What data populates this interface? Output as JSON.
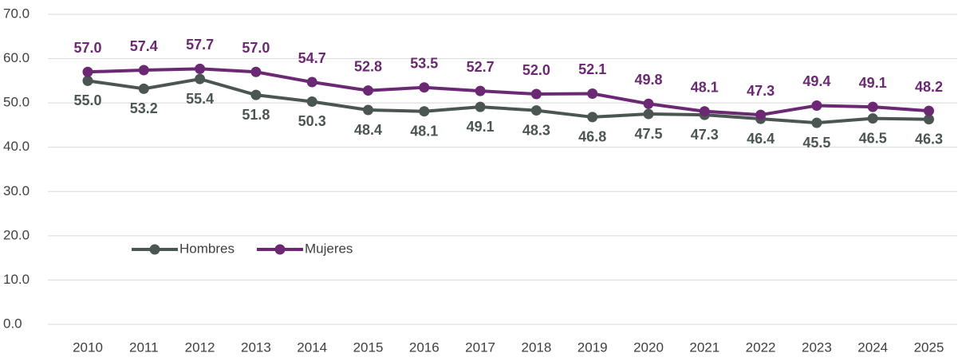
{
  "chart_data": {
    "type": "line",
    "categories": [
      "2010",
      "2011",
      "2012",
      "2013",
      "2014",
      "2015",
      "2016",
      "2017",
      "2018",
      "2019",
      "2020",
      "2021",
      "2022",
      "2023",
      "2024",
      "2025"
    ],
    "series": [
      {
        "name": "Hombres",
        "color": "#4b5551",
        "values": [
          55.0,
          53.2,
          55.4,
          51.8,
          50.3,
          48.4,
          48.1,
          49.1,
          48.3,
          46.8,
          47.5,
          47.3,
          46.4,
          45.5,
          46.5,
          46.3
        ],
        "value_labels": [
          "55.0",
          "53.2",
          "55.4",
          "51.8",
          "50.3",
          "48.4",
          "48.1",
          "49.1",
          "48.3",
          "46.8",
          "47.5",
          "47.3",
          "46.4",
          "45.5",
          "46.5",
          "46.3"
        ]
      },
      {
        "name": "Mujeres",
        "color": "#6b2873",
        "values": [
          57.0,
          57.4,
          57.7,
          57.0,
          54.7,
          52.8,
          53.5,
          52.7,
          52.0,
          52.1,
          49.8,
          48.1,
          47.3,
          49.4,
          49.1,
          48.2
        ],
        "value_labels": [
          "57.0",
          "57.4",
          "57.7",
          "57.0",
          "54.7",
          "52.8",
          "53.5",
          "52.7",
          "52.0",
          "52.1",
          "49.8",
          "48.1",
          "47.3",
          "49.4",
          "49.1",
          "48.2"
        ]
      }
    ],
    "ylim": [
      0,
      70
    ],
    "yticks": [
      {
        "value": 0,
        "label": "0.0"
      },
      {
        "value": 10,
        "label": "10.0"
      },
      {
        "value": 20,
        "label": "20.0"
      },
      {
        "value": 30,
        "label": "30.0"
      },
      {
        "value": 40,
        "label": "40.0"
      },
      {
        "value": 50,
        "label": "50.0"
      },
      {
        "value": 60,
        "label": "60.0"
      },
      {
        "value": 70,
        "label": "70.0"
      }
    ],
    "grid": true,
    "legend": "lower left"
  }
}
